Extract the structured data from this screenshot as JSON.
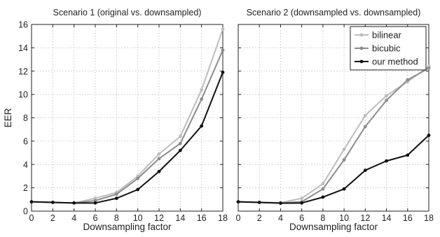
{
  "colors": {
    "bilinear": "#bdbdbd",
    "bicubic": "#8c8c8c",
    "our_method": "#111111",
    "grid": "#c8c8c8",
    "axis": "#222222"
  },
  "chart_data": [
    {
      "type": "line",
      "title": "Scenario 1 (original vs. downsampled)",
      "xlabel": "Downsampling factor",
      "ylabel": "EER",
      "xlim": [
        0,
        18
      ],
      "ylim": [
        0,
        16
      ],
      "xticks": [
        "0",
        "2",
        "4",
        "6",
        "8",
        "10",
        "12",
        "14",
        "16",
        "18"
      ],
      "yticks": [
        "0",
        "2",
        "4",
        "6",
        "8",
        "10",
        "12",
        "14",
        "16"
      ],
      "grid": true,
      "x": [
        0,
        2,
        4,
        6,
        8,
        10,
        12,
        14,
        16,
        18
      ],
      "series": [
        {
          "key": "bilinear",
          "values": [
            0.8,
            0.75,
            0.7,
            1.1,
            1.6,
            3.0,
            4.9,
            6.4,
            10.4,
            15.6
          ]
        },
        {
          "key": "bicubic",
          "values": [
            0.8,
            0.75,
            0.7,
            0.9,
            1.45,
            2.8,
            4.5,
            5.8,
            9.6,
            13.8
          ]
        },
        {
          "key": "our_method",
          "values": [
            0.8,
            0.75,
            0.7,
            0.7,
            1.1,
            1.85,
            3.4,
            5.2,
            7.3,
            11.9
          ]
        }
      ]
    },
    {
      "type": "line",
      "title": "Scenario 2 (downsampled vs. downsampled)",
      "xlabel": "Downsampling factor",
      "ylabel": "",
      "xlim": [
        0,
        18
      ],
      "ylim": [
        0,
        16
      ],
      "xticks": [
        "0",
        "2",
        "4",
        "6",
        "8",
        "10",
        "12",
        "14",
        "16",
        "18"
      ],
      "yticks": [],
      "grid": true,
      "legend_position": "top-right",
      "x": [
        0,
        2,
        4,
        6,
        8,
        10,
        12,
        14,
        16,
        18
      ],
      "series": [
        {
          "key": "bilinear",
          "name": "bilinear",
          "values": [
            0.8,
            0.75,
            0.72,
            1.1,
            2.35,
            5.3,
            8.2,
            9.9,
            11.1,
            12.4
          ]
        },
        {
          "key": "bicubic",
          "name": "bicubic",
          "values": [
            0.8,
            0.75,
            0.7,
            0.8,
            1.9,
            4.4,
            7.25,
            9.5,
            11.25,
            12.25
          ]
        },
        {
          "key": "our_method",
          "name": "our method",
          "values": [
            0.8,
            0.75,
            0.68,
            0.7,
            1.2,
            1.9,
            3.5,
            4.3,
            4.8,
            6.5
          ]
        }
      ]
    }
  ]
}
